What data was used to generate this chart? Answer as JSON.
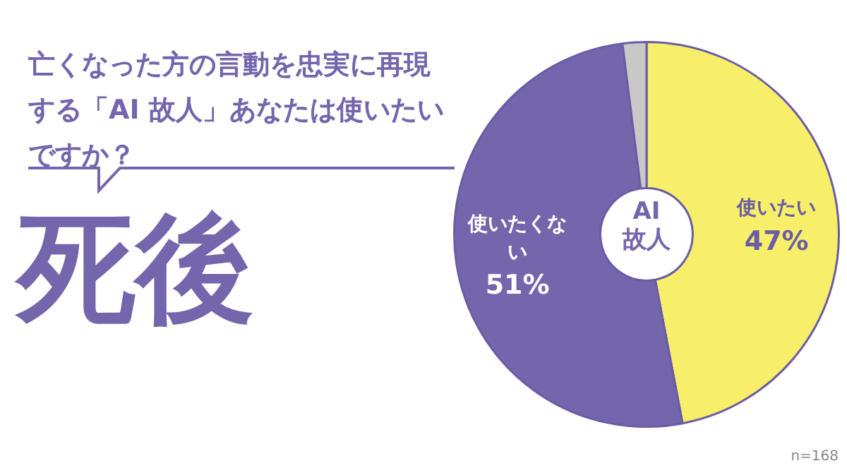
{
  "chart_data": {
    "type": "donut",
    "title": "亡くなった方の言動を忠実に再現する「AI 故人」あなたは使いたいですか？",
    "subtitle": "死後",
    "categories": [
      "使いたい",
      "使いたくない",
      null
    ],
    "values": [
      47,
      51,
      2
    ],
    "colors": [
      "#f7ef6a",
      "#7466ad",
      "#c8c8c8"
    ],
    "value_labels": [
      "47%",
      "51%",
      null
    ],
    "annotations": [
      "AI\n故人",
      "n=168"
    ],
    "legend": false
  }
}
